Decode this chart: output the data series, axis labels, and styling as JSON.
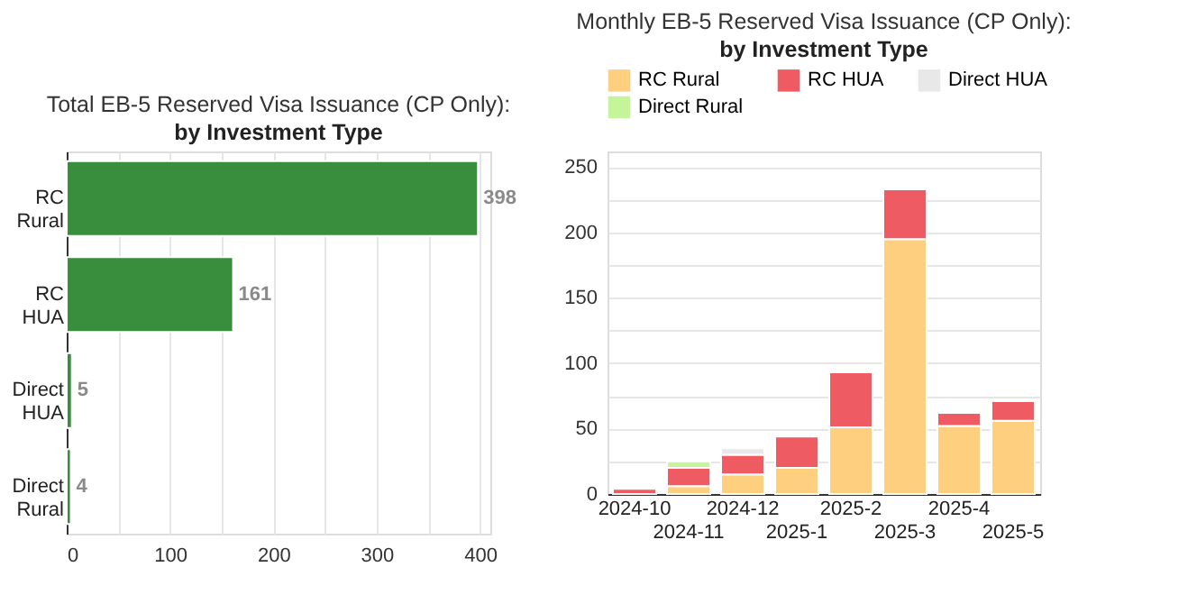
{
  "chart_data": [
    {
      "type": "bar",
      "orientation": "horizontal",
      "title": "Total EB-5 Reserved Visa Issuance (CP Only):",
      "subtitle": "by Investment Type",
      "categories": [
        "RC Rural",
        "RC HUA",
        "Direct HUA",
        "Direct Rural"
      ],
      "values": [
        398,
        161,
        5,
        4
      ],
      "color": "#388e3c",
      "data_labels": true,
      "xlim": [
        0,
        410
      ],
      "xticks": [
        0,
        {
          "value": 50,
          "label": null
        },
        100,
        {
          "value": 150,
          "label": null
        },
        200,
        {
          "value": 250,
          "label": null
        },
        300,
        {
          "value": 350,
          "label": null
        },
        400
      ],
      "grid": "x"
    },
    {
      "type": "bar",
      "stacked": true,
      "title": "Monthly EB-5 Reserved Visa Issuance (CP Only):",
      "subtitle": "by Investment Type",
      "categories": [
        "2024-10",
        "2024-11",
        "2024-12",
        "2025-1",
        "2025-2",
        "2025-3",
        "2025-4",
        "2025-5"
      ],
      "series": [
        {
          "name": "RC Rural",
          "color": "#fecf7f",
          "values": [
            null,
            6,
            15,
            20,
            51,
            195,
            52,
            56
          ]
        },
        {
          "name": "RC HUA",
          "color": "#ef5b63",
          "values": [
            4,
            14,
            15,
            24,
            42,
            38,
            10,
            15
          ]
        },
        {
          "name": "Direct HUA",
          "color": "#e8e8e8",
          "values": [
            null,
            null,
            5,
            null,
            null,
            null,
            null,
            null
          ]
        },
        {
          "name": "Direct Rural",
          "color": "#c6f49a",
          "values": [
            null,
            5,
            null,
            null,
            null,
            null,
            null,
            null
          ]
        }
      ],
      "ylim": [
        0,
        262
      ],
      "yticks": [
        0,
        {
          "value": 25,
          "label": null
        },
        50,
        {
          "value": 75,
          "label": null
        },
        100,
        {
          "value": 125,
          "label": null
        },
        150,
        {
          "value": 175,
          "label": null
        },
        200,
        {
          "value": 225,
          "label": null
        },
        250
      ],
      "grid": "y",
      "legend": "top"
    }
  ]
}
